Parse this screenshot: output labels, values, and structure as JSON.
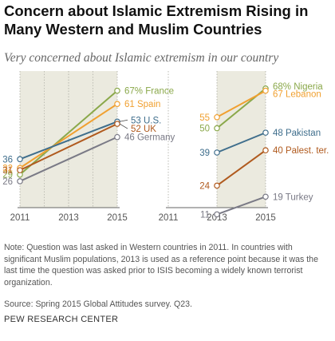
{
  "title": "Concern about Islamic Extremism Rising in Many Western and Muslim Countries",
  "subtitle": "Very concerned about Islamic extremism in our country",
  "note": "Note: Question was last asked in Western countries in 2011. In countries with significant Muslim populations, 2013 is used as a reference point because it was the last time the question was asked prior to ISIS becoming a widely known terrorist organization.",
  "source": "Source: Spring 2015 Global Attitudes survey. Q23.",
  "org": "PEW RESEARCH CENTER",
  "chart_data": [
    {
      "type": "line",
      "panel": "western",
      "x": [
        2011,
        2015
      ],
      "xticks": [
        "2011",
        "2013",
        "2015"
      ],
      "shaded_range": [
        2011,
        2015
      ],
      "series": [
        {
          "name": "France",
          "values": [
            29,
            67
          ],
          "start_label": "29",
          "end_label": "67% France",
          "color": "#8aa84a"
        },
        {
          "name": "Spain",
          "values": [
            32,
            61
          ],
          "start_label": "32",
          "end_label": "61 Spain",
          "color": "#f0a030"
        },
        {
          "name": "U.S.",
          "values": [
            36,
            53
          ],
          "start_label": "36",
          "end_label": "53 U.S.",
          "color": "#3f6e8c"
        },
        {
          "name": "UK",
          "values": [
            31,
            52
          ],
          "start_label": "31",
          "end_label": "52 UK",
          "color": "#b05a1e"
        },
        {
          "name": "Germany",
          "values": [
            26,
            46
          ],
          "start_label": "26",
          "end_label": "46 Germany",
          "color": "#7a7a86"
        }
      ]
    },
    {
      "type": "line",
      "panel": "muslim",
      "x": [
        2013,
        2015
      ],
      "xticks": [
        "2011",
        "2013",
        "2015"
      ],
      "shaded_range": [
        2013,
        2015
      ],
      "series": [
        {
          "name": "Nigeria",
          "values": [
            50,
            68
          ],
          "start_label": "50",
          "end_label": "68% Nigeria",
          "color": "#8aa84a"
        },
        {
          "name": "Lebanon",
          "values": [
            55,
            67
          ],
          "start_label": "55",
          "end_label": "67 Lebanon",
          "color": "#f0a030"
        },
        {
          "name": "Pakistan",
          "values": [
            39,
            48
          ],
          "start_label": "39",
          "end_label": "48 Pakistan",
          "color": "#3f6e8c"
        },
        {
          "name": "Palest. ter.",
          "values": [
            24,
            40
          ],
          "start_label": "24",
          "end_label": "40 Palest. ter.",
          "color": "#b05a1e"
        },
        {
          "name": "Turkey",
          "values": [
            11,
            19
          ],
          "start_label": "11",
          "end_label": "19 Turkey",
          "color": "#7a7a86"
        }
      ]
    }
  ]
}
